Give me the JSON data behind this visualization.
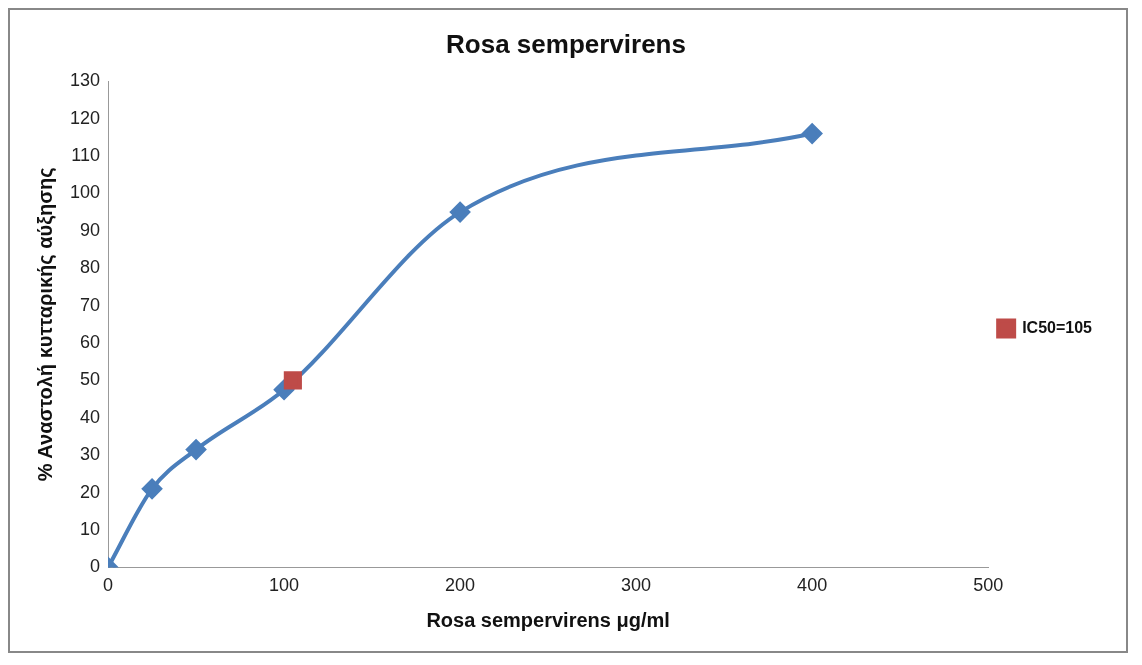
{
  "chart_data": {
    "type": "line",
    "title": "Rosa sempervirens",
    "xlabel": "Rosa sempervirens μg/ml",
    "ylabel": "% Αναστολή κυτταρικής αύξησης",
    "xlim": [
      0,
      500
    ],
    "xticks": [
      0,
      100,
      200,
      300,
      400,
      500
    ],
    "ylim": [
      0,
      130
    ],
    "yticks": [
      0,
      10,
      20,
      30,
      40,
      50,
      60,
      70,
      80,
      90,
      100,
      110,
      120,
      130
    ],
    "grid": false,
    "legend": "right",
    "series": [
      {
        "marker": "diamond",
        "color": "#4a7ebb",
        "x": [
          0,
          25,
          50,
          100,
          200,
          400
        ],
        "values": [
          0,
          21,
          31.5,
          47.5,
          95,
          116
        ]
      },
      {
        "marker": "square",
        "name": "IC50=105",
        "color": "#be4b48",
        "x": [
          105
        ],
        "values": [
          50
        ]
      }
    ]
  }
}
